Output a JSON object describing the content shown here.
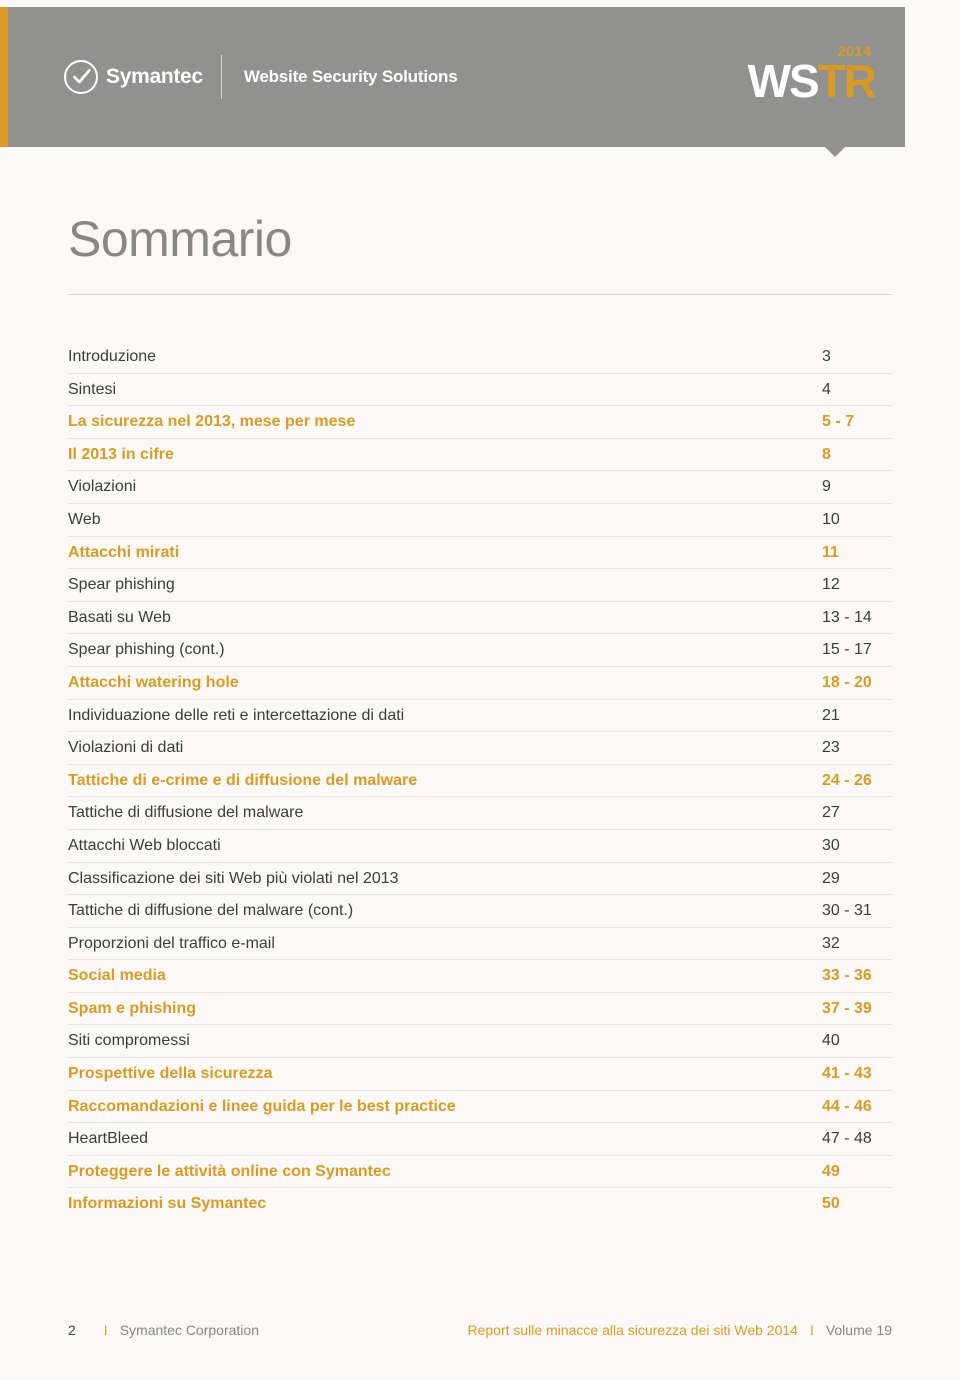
{
  "header": {
    "brand": "Symantec",
    "subtitle": "Website Security Solutions",
    "wstr_year": "2014",
    "wstr_ws": "WS",
    "wstr_tr": "TR"
  },
  "title": "Sommario",
  "colors": {
    "accent": "#d99a27",
    "header_bg": "#919190",
    "body_text": "#3c3c3a",
    "muted": "#888784",
    "page_bg": "#faf9f7",
    "rule": "#e5e3de"
  },
  "toc": [
    {
      "label": "Introduzione",
      "page": "3",
      "kind": "item"
    },
    {
      "label": "Sintesi",
      "page": "4",
      "kind": "item"
    },
    {
      "label": "La sicurezza nel 2013, mese per mese",
      "page": "5 - 7",
      "kind": "section"
    },
    {
      "label": "Il 2013 in cifre",
      "page": "8",
      "kind": "section"
    },
    {
      "label": "Violazioni",
      "page": "9",
      "kind": "item"
    },
    {
      "label": "Web",
      "page": "10",
      "kind": "item"
    },
    {
      "label": "Attacchi mirati",
      "page": "11",
      "kind": "section"
    },
    {
      "label": "Spear phishing",
      "page": "12",
      "kind": "item"
    },
    {
      "label": "Basati su Web",
      "page": "13 - 14",
      "kind": "item"
    },
    {
      "label": "Spear phishing (cont.)",
      "page": "15 - 17",
      "kind": "item"
    },
    {
      "label": "Attacchi watering hole",
      "page": "18 - 20",
      "kind": "section"
    },
    {
      "label": "Individuazione delle reti e intercettazione di dati",
      "page": "21",
      "kind": "item"
    },
    {
      "label": "Violazioni di dati",
      "page": "23",
      "kind": "item"
    },
    {
      "label": "Tattiche di e-crime e di diffusione del malware",
      "page": "24 - 26",
      "kind": "section"
    },
    {
      "label": "Tattiche di diffusione del malware",
      "page": "27",
      "kind": "item"
    },
    {
      "label": "Attacchi Web bloccati",
      "page": "30",
      "kind": "item"
    },
    {
      "label": "Classificazione dei siti Web più violati nel 2013",
      "page": "29",
      "kind": "item"
    },
    {
      "label": "Tattiche di diffusione del malware (cont.)",
      "page": "30 - 31",
      "kind": "item"
    },
    {
      "label": "Proporzioni del traffico e-mail",
      "page": "32",
      "kind": "item"
    },
    {
      "label": "Social media",
      "page": "33 - 36",
      "kind": "section"
    },
    {
      "label": "Spam e phishing",
      "page": "37 - 39",
      "kind": "section"
    },
    {
      "label": "Siti compromessi",
      "page": "40",
      "kind": "item"
    },
    {
      "label": "Prospettive della sicurezza",
      "page": "41 - 43",
      "kind": "section"
    },
    {
      "label": "Raccomandazioni e linee guida per le best practice",
      "page": "44 - 46",
      "kind": "section"
    },
    {
      "label": "HeartBleed",
      "page": "47 - 48",
      "kind": "item"
    },
    {
      "label": "Proteggere le attività online con Symantec",
      "page": "49",
      "kind": "section"
    },
    {
      "label": "Informazioni su Symantec",
      "page": "50",
      "kind": "section"
    }
  ],
  "footer": {
    "page_number": "2",
    "corp": "Symantec Corporation",
    "report": "Report sulle minacce alla sicurezza dei siti Web 2014",
    "volume": "Volume 19",
    "separator": "I"
  }
}
